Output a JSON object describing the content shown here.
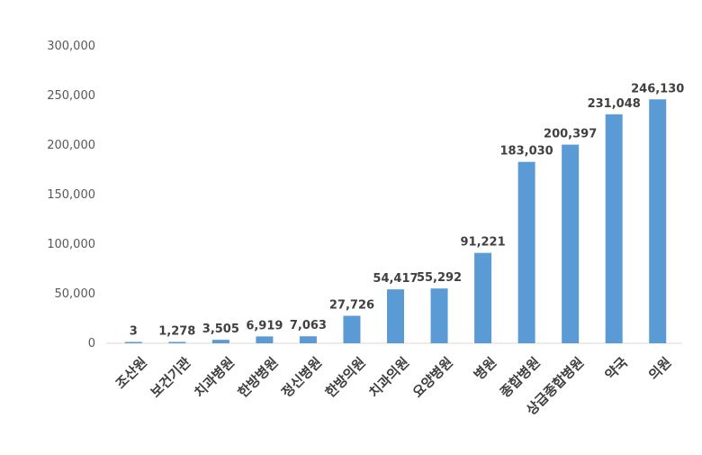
{
  "chart_data": {
    "type": "bar",
    "title": "",
    "xlabel": "",
    "ylabel": "",
    "ylim": [
      0,
      300000
    ],
    "grid": false,
    "bar_color": "#5b9bd5",
    "yticks": [
      0,
      50000,
      100000,
      150000,
      200000,
      250000,
      300000
    ],
    "ytick_labels": [
      "0",
      "50,000",
      "100,000",
      "150,000",
      "200,000",
      "250,000",
      "300,000"
    ],
    "categories": [
      "조산원",
      "보건기관",
      "치과병원",
      "한방병원",
      "정신병원",
      "한방의원",
      "치과의원",
      "요양병원",
      "병원",
      "종합병원",
      "상급종합병원",
      "약국",
      "의원"
    ],
    "values": [
      3,
      1278,
      3505,
      6919,
      7063,
      27726,
      54417,
      55292,
      91221,
      183030,
      200397,
      231048,
      246130
    ],
    "value_labels": [
      "3",
      "1,278",
      "3,505",
      "6,919",
      "7,063",
      "27,726",
      "54,417",
      "55,292",
      "91,221",
      "183,030",
      "200,397",
      "231,048",
      "246,130"
    ]
  }
}
